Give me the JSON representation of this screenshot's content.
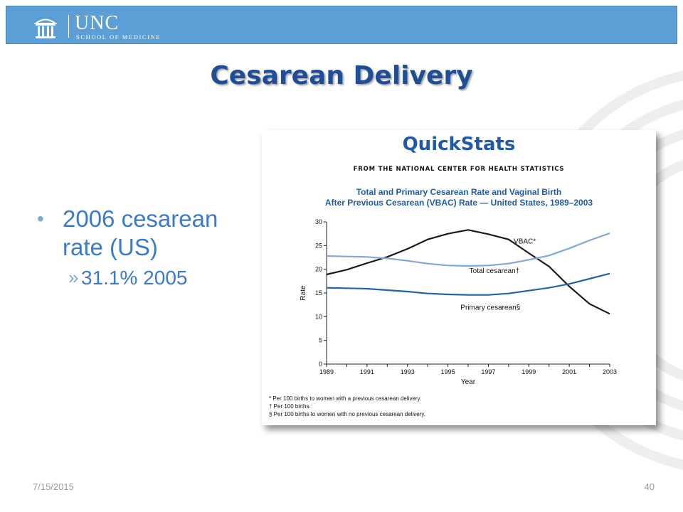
{
  "header": {
    "logo_name": "UNC",
    "logo_sub": "SCHOOL OF MEDICINE",
    "background": "#5b9fd6"
  },
  "slide": {
    "title": "Cesarean Delivery",
    "bullets": [
      {
        "text": "2006 cesarean rate (US)",
        "sub": [
          "31.1% 2005"
        ]
      }
    ]
  },
  "quickstats": {
    "title": "QuickStats",
    "source": "FROM THE NATIONAL CENTER FOR HEALTH STATISTICS",
    "chart_title_line1": "Total and Primary Cesarean Rate and Vaginal Birth",
    "chart_title_line2": "After Previous Cesarean (VBAC) Rate — United States, 1989–2003",
    "footnotes": [
      "* Per 100 births to women with a previous cesarean delivery.",
      "† Per 100 births.",
      "§ Per 100 births to women with no previous cesarean delivery."
    ]
  },
  "chart_data": {
    "type": "line",
    "title": "Total and Primary Cesarean Rate and Vaginal Birth After Previous Cesarean (VBAC) Rate — United States, 1989–2003",
    "xlabel": "Year",
    "ylabel": "Rate",
    "x": [
      1989,
      1990,
      1991,
      1992,
      1993,
      1994,
      1995,
      1996,
      1997,
      1998,
      1999,
      2000,
      2001,
      2002,
      2003
    ],
    "x_ticks": [
      "1989",
      "1991",
      "1993",
      "1995",
      "1997",
      "1999",
      "2001",
      "2003"
    ],
    "y_ticks": [
      "0",
      "5",
      "10",
      "15",
      "20",
      "25",
      "30"
    ],
    "xlim": [
      1989,
      2003
    ],
    "ylim": [
      0,
      30
    ],
    "grid": false,
    "series": [
      {
        "name": "VBAC*",
        "color": "#1a1a1a",
        "values": [
          18.9,
          19.9,
          21.3,
          22.6,
          24.3,
          26.3,
          27.5,
          28.3,
          27.4,
          26.3,
          23.4,
          20.6,
          16.4,
          12.7,
          10.6
        ]
      },
      {
        "name": "Total cesarean†",
        "color": "#7fa8d8",
        "values": [
          22.8,
          22.7,
          22.6,
          22.3,
          21.8,
          21.2,
          20.8,
          20.7,
          20.8,
          21.2,
          22.0,
          22.9,
          24.4,
          26.1,
          27.6
        ]
      },
      {
        "name": "Primary cesarean§",
        "color": "#1f63a8",
        "values": [
          16.1,
          16.0,
          15.9,
          15.6,
          15.3,
          14.9,
          14.7,
          14.6,
          14.6,
          14.9,
          15.5,
          16.1,
          16.9,
          18.0,
          19.1
        ]
      }
    ]
  },
  "footer": {
    "date": "7/15/2015",
    "page": "40"
  }
}
